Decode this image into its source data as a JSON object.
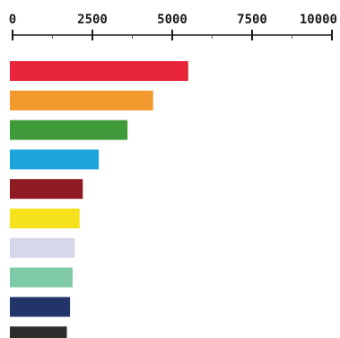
{
  "chart_data": {
    "type": "bar",
    "orientation": "horizontal",
    "title": "",
    "xlabel": "",
    "ylabel": "",
    "xlim": [
      0,
      10000
    ],
    "axis_position": "top",
    "grid": false,
    "legend": "none",
    "ticks": [
      {
        "value": 0,
        "label": "0"
      },
      {
        "value": 2500,
        "label": "2500"
      },
      {
        "value": 5000,
        "label": "5000"
      },
      {
        "value": 7500,
        "label": "7500"
      },
      {
        "value": 10000,
        "label": "10000"
      }
    ],
    "minor_ticks": [
      1250,
      3750,
      6250,
      8750
    ],
    "bars": [
      {
        "value": 5500,
        "color": "#e8253a"
      },
      {
        "value": 4400,
        "color": "#f29a2e"
      },
      {
        "value": 3600,
        "color": "#3f9a3a"
      },
      {
        "value": 2700,
        "color": "#1ea4dc"
      },
      {
        "value": 2200,
        "color": "#8e1b24"
      },
      {
        "value": 2100,
        "color": "#f5e11c"
      },
      {
        "value": 1950,
        "color": "#d4d8ea"
      },
      {
        "value": 1880,
        "color": "#7fcaa6"
      },
      {
        "value": 1800,
        "color": "#23346a"
      },
      {
        "value": 1700,
        "color": "#2e2e2c"
      }
    ]
  }
}
